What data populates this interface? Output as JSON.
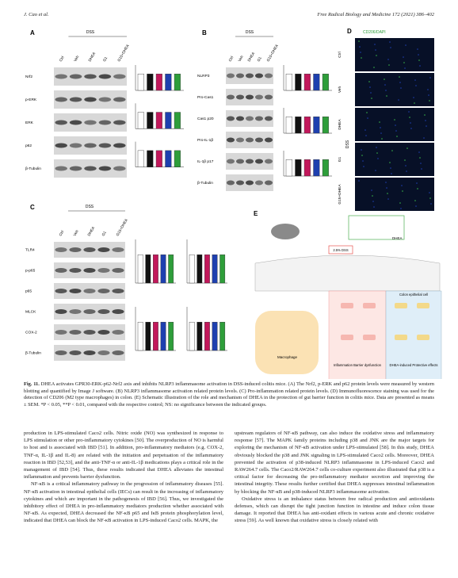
{
  "header": {
    "authors": "J. Cao et al.",
    "journal": "Free Radical Biology and Medicine 172 (2021) 386–402"
  },
  "figure": {
    "panels": [
      {
        "label": "A",
        "group": "DSS",
        "lanes": [
          "Ctrl",
          "Veh",
          "DHEA",
          "G1",
          "G15+DHEA"
        ],
        "bands": [
          "Nrf2",
          "p-ERK",
          "ERK",
          "p62",
          "β-Tubulin"
        ]
      },
      {
        "label": "B",
        "group": "DSS",
        "lanes": [
          "Ctrl",
          "Veh",
          "DHEA",
          "G1",
          "G15+DHEA"
        ],
        "bands": [
          "NLRP3",
          "Pro-Cas1",
          "Cas1 p20",
          "Pro-IL-1β",
          "IL-1β p17",
          "β-Tubulin"
        ]
      },
      {
        "label": "C",
        "group": "DSS",
        "lanes": [
          "Ctrl",
          "Veh",
          "DHEA",
          "G1",
          "G15+DHEA"
        ],
        "bands": [
          "TLR4",
          "p-p65",
          "p65",
          "MLCK",
          "COX-2",
          "β-Tubulin"
        ]
      }
    ],
    "panel_d": {
      "label": "D",
      "stain": "CD206/DAPI",
      "group": "DSS",
      "rows": [
        "Ctrl",
        "Veh",
        "DHEA",
        "G1",
        "G15+DHEA"
      ]
    },
    "panel_e": {
      "label": "E",
      "drug": "DHEA",
      "dss": "2.5% DSS",
      "cell_left": "Macrophage",
      "cell_right": "Colon epithelial cell",
      "effect_left": "Inflammation Barrier dysfunction",
      "effect_right": "DHEA-induced Protective effects"
    },
    "caption_label": "Fig. 11.",
    "caption": "DHEA activates GPR30-ERK-p62-Nrf2 axis and inhibits NLRP3 inflammasome activation in DSS-induced colitis mice. (A) The Nrf2, p-ERK and p62 protein levels were measured by western blotting and quantified by Image J software. (B) NLRP3 inflammasome activation related protein levels. (C) Pro-inflammation related protein levels. (D) Immunofluorescence staining was used for the detection of CD206 (M2 type macrophages) in colon. (E) Schematic illustration of the role and mechanism of DHEA in the protection of gut barrier function in colitis mice. Data are presented as means ± SEM. *P < 0.05, **P < 0.01, compared with the respective control; NS: no significance between the indicated groups."
  },
  "body": {
    "left": [
      "production in LPS-stimulated Caco2 cells. Nitric oxide (NO) was synthesized in response to LPS stimulation or other pro-inflammatory cytokines [50]. The overproduction of NO is harmful to host and is associated with IBD [51]. In addition, pro-inflammatory mediators (e.g. COX-2, TNF-α, IL-1β and IL-8) are related with the initiation and perpetuation of the inflammatory reaction in IBD [52,53], and the anti-TNF-α or anti-IL-1β medications plays a critical role in the management of IBD [54]. Thus, these results indicated that DHEA alleviates the intestinal inflammation and prevents barrier dysfunction.",
      "NF-κB is a critical inflammatory pathway in the progression of inflammatory diseases [55]. NF-κB activation in intestinal epithelial cells (IECs) can result in the increasing of inflammatory cytokines and which are important in the pathogenesis of IBD [56]. Thus, we investigated the inhibitory effect of DHEA in pro-inflammatory mediators production whether associated with NF-κB. As expected, DHEA decreased the NF-κB p65 and IκB protein phosphorylation level, indicated that DHEA can block the NF-κB activation in LPS-induced Caco2 cells. MAPK, the"
    ],
    "right": [
      "upstream regulators of NF-κB pathway, can also induce the oxidative stress and inflammatory response [57]. The MAPK family proteins including p38 and JNK are the major targets for exploring the mechanism of NF-κB activation under LPS-stimulated [58]. In this study, DHEA obviously blocked the p38 and JNK signaling in LPS-stimulated Caco2 cells. Moreover, DHEA prevented the activation of p38-induced NLRP3 inflammasome in LPS-induced Caco2 and RAW264.7 cells. The Caco2/RAW264.7 cells co-culture experiment also illustrated that p38 is a critical factor for decreasing the pro-inflammatory mediator secretion and improving the intestinal integrity. These results further certified that DHEA suppresses intestinal inflammation by blocking the NF-κB and p38-induced NLRP3 inflammasome activation.",
      "Oxidative stress is an imbalance status between free radical production and antioxidants defenses, which can disrupt the tight junction function in intestine and induce colon tissue damage. It reported that DHEA has anti-oxidant effects in various acute and chronic oxidative stress [59]. As well known that oxidative stress is closely related with"
    ]
  }
}
